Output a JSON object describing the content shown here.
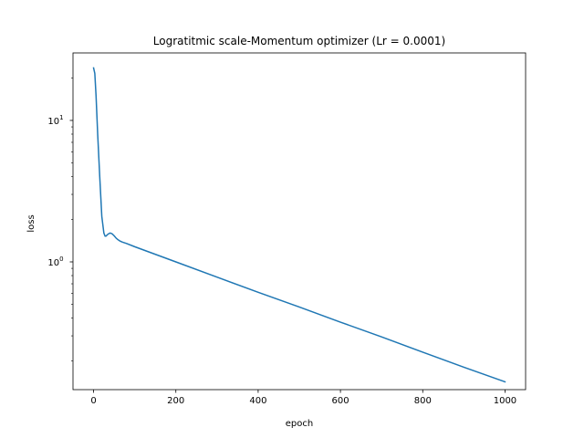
{
  "chart_data": {
    "type": "line",
    "title": "Logratitmic scale-Momentum optimizer (Lr = 0.0001)",
    "xlabel": "epoch",
    "ylabel": "loss",
    "yscale": "log",
    "xlim": [
      -50,
      1050
    ],
    "ylim": [
      0.125,
      30
    ],
    "grid": false,
    "x_ticks": [
      0,
      200,
      400,
      600,
      800,
      1000
    ],
    "x_tick_labels": [
      "0",
      "200",
      "400",
      "600",
      "800",
      "1000"
    ],
    "y_major_ticks": [
      1,
      10
    ],
    "y_major_tick_labels": [
      "10",
      "10"
    ],
    "y_major_tick_exponents": [
      "0",
      "1"
    ],
    "y_minor_ticks": [
      0.2,
      0.3,
      0.4,
      0.5,
      0.6,
      0.7,
      0.8,
      0.9,
      2,
      3,
      4,
      5,
      6,
      7,
      8,
      9,
      20
    ],
    "series": [
      {
        "color": "#1f77b4",
        "x": [
          0,
          3,
          6,
          10,
          15,
          20,
          25,
          28,
          30,
          35,
          40,
          45,
          50,
          55,
          60,
          65,
          70,
          80,
          100,
          200,
          300,
          400,
          500,
          600,
          700,
          800,
          900,
          1000
        ],
        "y": [
          23.5,
          21.5,
          15,
          8,
          4,
          2.1,
          1.6,
          1.52,
          1.52,
          1.57,
          1.6,
          1.58,
          1.53,
          1.47,
          1.43,
          1.4,
          1.38,
          1.35,
          1.28,
          1.0,
          0.78,
          0.61,
          0.48,
          0.375,
          0.295,
          0.23,
          0.18,
          0.142
        ]
      }
    ]
  }
}
